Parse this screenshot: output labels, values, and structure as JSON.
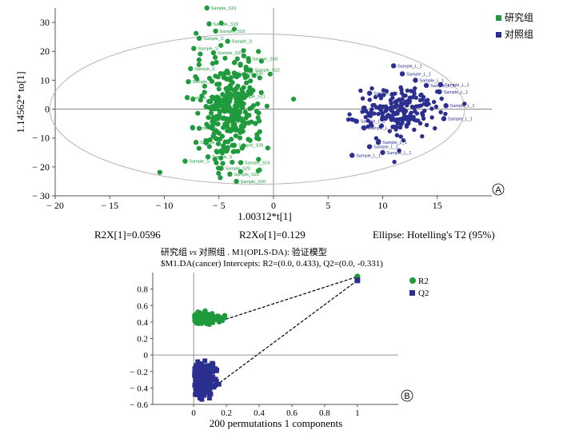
{
  "chart_data": [
    {
      "type": "scatter",
      "panel_label": "A",
      "xlabel": "1.00312*t[1]",
      "ylabel": "1.14562* to[1]",
      "xlim": [
        -20,
        20
      ],
      "ylim": [
        -30,
        35
      ],
      "x_ticks": [
        "− 20",
        "− 15",
        "− 10",
        "− 5",
        "0",
        "5",
        "10",
        "15"
      ],
      "y_ticks": [
        "30",
        "20",
        "10",
        "0",
        "− 10",
        "− 20",
        "− 30"
      ],
      "footer": {
        "r2x": "R2X[1]=0.0596",
        "r2xo": "R2Xo[1]=0.129",
        "ellipse": "Ellipse: Hotelling's T2 (95%)"
      },
      "series": [
        {
          "name": "研究组",
          "color": "#1f9a3c",
          "marker": "square",
          "points": [
            {
              "x": -6.1,
              "y": 35,
              "label": "Sample_S19"
            },
            {
              "x": -5.9,
              "y": 29.5,
              "label": "Sample_S19"
            },
            {
              "x": -5.3,
              "y": 27,
              "label": "Sample_S18"
            },
            {
              "x": -6.8,
              "y": 24.5,
              "label": "Sample_S"
            },
            {
              "x": -4.2,
              "y": 23.5,
              "label": "Sample_S"
            },
            {
              "x": -7.3,
              "y": 21,
              "label": "Sample_S"
            },
            {
              "x": -5.5,
              "y": 19.5,
              "label": "Sample_S20"
            },
            {
              "x": -2.3,
              "y": 17.5,
              "label": "Sample_S18"
            },
            {
              "x": -2.1,
              "y": 13.5,
              "label": "Sample_S22"
            },
            {
              "x": -7.6,
              "y": 14,
              "label": "Sample_S"
            },
            {
              "x": -3.6,
              "y": 12.5,
              "label": "Sample_S30"
            },
            {
              "x": -7.8,
              "y": 9.5,
              "label": "Sample_S"
            },
            {
              "x": -7.9,
              "y": 4,
              "label": "Sample_S"
            },
            {
              "x": -3.4,
              "y": 4.5,
              "label": "Sample_S21"
            },
            {
              "x": -7.4,
              "y": -6.5,
              "label": "Sample_S"
            },
            {
              "x": -4.2,
              "y": -4.5,
              "label": "Sample_S29"
            },
            {
              "x": -7.1,
              "y": -11.5,
              "label": "Sample_S"
            },
            {
              "x": -3.6,
              "y": -12.5,
              "label": "Sample_S28"
            },
            {
              "x": -6.0,
              "y": -16.5,
              "label": "Sample_S"
            },
            {
              "x": -8.1,
              "y": -18,
              "label": "Sample_S"
            },
            {
              "x": -3.0,
              "y": -18.5,
              "label": "Sample_S19"
            },
            {
              "x": -4.8,
              "y": -20.5,
              "label": "Sample_S20"
            },
            {
              "x": -4.0,
              "y": -22.5,
              "label": "Sample_S29"
            },
            {
              "x": -3.4,
              "y": -25,
              "label": "Sample_S20"
            }
          ]
        },
        {
          "name": "对照组",
          "color": "#2b2f8f",
          "marker": "square",
          "points": [
            {
              "x": 11.0,
              "y": 15,
              "label": "Sample_L_1"
            },
            {
              "x": 11.8,
              "y": 12.2,
              "label": "Sample_L_1"
            },
            {
              "x": 13.0,
              "y": 10,
              "label": "Sample_L_1"
            },
            {
              "x": 14.0,
              "y": 8.2,
              "label": "Sample_L_1"
            },
            {
              "x": 15.3,
              "y": 8.5,
              "label": "Sample_L_1"
            },
            {
              "x": 15.2,
              "y": 6,
              "label": "Sample_L_1"
            },
            {
              "x": 8.8,
              "y": 5.5,
              "label": "Sample_L_1"
            },
            {
              "x": 15.8,
              "y": 1.2,
              "label": "Sample_L_1"
            },
            {
              "x": 15.6,
              "y": -3.3,
              "label": "Sample_L_1"
            },
            {
              "x": 7.6,
              "y": -4.2,
              "label": "Sample_L_1"
            },
            {
              "x": 8.3,
              "y": -6.5,
              "label": "Sample_L_1"
            },
            {
              "x": 9.6,
              "y": -11.5,
              "label": "Sample_L_1"
            },
            {
              "x": 8.8,
              "y": -13,
              "label": "Sample_L_1"
            },
            {
              "x": 7.2,
              "y": -16,
              "label": "Sample_L_1"
            },
            {
              "x": 10.0,
              "y": -15,
              "label": "Sample_L_1"
            }
          ]
        }
      ]
    },
    {
      "type": "scatter",
      "panel_label": "B",
      "title_line1_a": "研究组",
      "title_line1_vs": "vs",
      "title_line1_b": "对照组 . M1(OPLS-DA): 验证模型",
      "title_line2": "$M1.DA(cancer) Intercepts: R2=(0.0, 0.433), Q2=(0.0, -0.331)",
      "xlabel": "200 permutations 1 components",
      "xlim": [
        -0.25,
        1.25
      ],
      "ylim": [
        -0.6,
        1.0
      ],
      "x_ticks": [
        "0",
        "0.2",
        "0.4",
        "0.6",
        "0.8",
        "1"
      ],
      "y_ticks": [
        "0.8",
        "0.6",
        "0.4",
        "0.2",
        "0",
        "− 0.2",
        "− 0.4",
        "− 0.6"
      ],
      "intercepts": {
        "R2": [
          0.0,
          0.433
        ],
        "Q2": [
          0.0,
          -0.331
        ]
      },
      "observed": {
        "R2": [
          1.0,
          0.95
        ],
        "Q2": [
          1.0,
          0.905
        ]
      },
      "permutations": 200,
      "series": [
        {
          "name": "R2",
          "color": "#1f9a3c",
          "marker": "circle",
          "cluster_x": [
            0.0,
            0.19
          ],
          "cluster_y": [
            0.37,
            0.52
          ]
        },
        {
          "name": "Q2",
          "color": "#2b2f8f",
          "marker": "square",
          "cluster_x": [
            0.0,
            0.18
          ],
          "cluster_y": [
            -0.55,
            -0.02
          ]
        }
      ]
    }
  ]
}
